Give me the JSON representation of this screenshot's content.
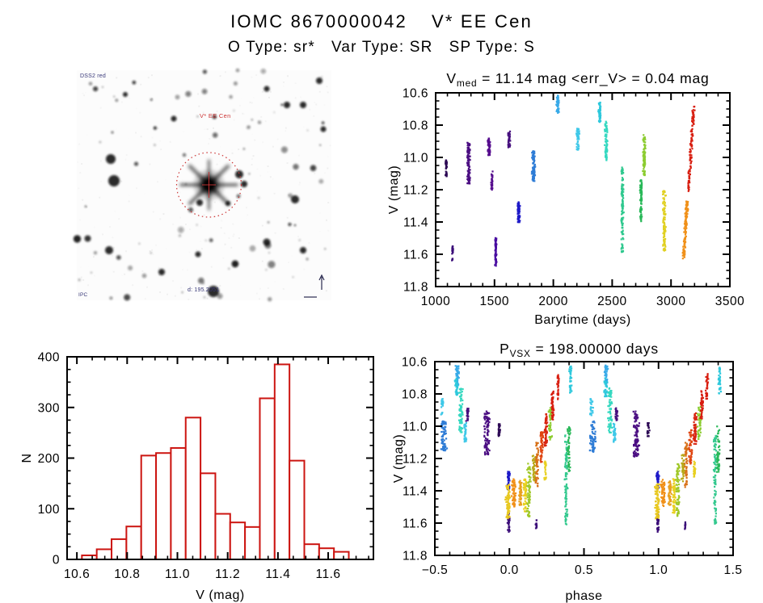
{
  "header": {
    "title_parts": [
      "IOMC 8670000042",
      "V* EE Cen"
    ],
    "subtitle_parts": [
      "O Type: sr*",
      "Var Type: SR",
      "SP Type: S"
    ]
  },
  "finder": {
    "survey_label": "DSS2 red",
    "target_label": "V* EE Cen",
    "coord_label": "d: 195.2051",
    "corner_label": "IPC",
    "annotation_color": "#cc3535",
    "smalltext_color": "#3a3a7a"
  },
  "chart_data": [
    {
      "id": "lightcurve",
      "type": "scatter",
      "title": {
        "pre": "V",
        "sub": "med",
        "post": " = 11.14 mag <err_V> = 0.04 mag"
      },
      "xlabel": "Barytime (days)",
      "ylabel": "V (mag)",
      "xlim": [
        1000,
        3500
      ],
      "ylim": [
        11.8,
        10.6
      ],
      "xticks": [
        {
          "v": 1000,
          "l": "1000"
        },
        {
          "v": 1500,
          "l": "1500"
        },
        {
          "v": 2000,
          "l": "2000"
        },
        {
          "v": 2500,
          "l": "2500"
        },
        {
          "v": 3000,
          "l": "3000"
        },
        {
          "v": 3500,
          "l": "3500"
        }
      ],
      "yticks": [
        {
          "v": 10.6,
          "l": "10.6"
        },
        {
          "v": 10.8,
          "l": "10.8"
        },
        {
          "v": 11.0,
          "l": "11.0"
        },
        {
          "v": 11.2,
          "l": "11.2"
        },
        {
          "v": 11.4,
          "l": "11.4"
        },
        {
          "v": 11.6,
          "l": "11.6"
        },
        {
          "v": 11.8,
          "l": "11.8"
        }
      ],
      "xminor": 100,
      "yminor": 0.05,
      "clusters": [
        {
          "x": 1090,
          "v": [
            11.02,
            11.12
          ],
          "c": "#2D0A55",
          "n": 16,
          "w": 8,
          "t": 0
        },
        {
          "x": 1144,
          "v": [
            11.55,
            11.64
          ],
          "c": "#3A0C78",
          "n": 12,
          "w": 8,
          "t": 0
        },
        {
          "x": 1281,
          "v": [
            10.9,
            11.16
          ],
          "c": "#4B0E82",
          "n": 55,
          "w": 14,
          "t": 0
        },
        {
          "x": 1453,
          "v": [
            10.88,
            10.99
          ],
          "c": "#560D8E",
          "n": 30,
          "w": 12,
          "t": 0
        },
        {
          "x": 1478,
          "v": [
            11.08,
            11.2
          ],
          "c": "#560D8E",
          "n": 16,
          "w": 8,
          "t": 0
        },
        {
          "x": 1512,
          "v": [
            11.5,
            11.67
          ],
          "c": "#480BA0",
          "n": 30,
          "w": 10,
          "t": 0
        },
        {
          "x": 1625,
          "v": [
            10.84,
            10.94
          ],
          "c": "#46107E",
          "n": 22,
          "w": 12,
          "t": 0
        },
        {
          "x": 1707,
          "v": [
            11.28,
            11.41
          ],
          "c": "#1E1AC8",
          "n": 32,
          "w": 12,
          "t": 0
        },
        {
          "x": 1831,
          "v": [
            10.96,
            11.15
          ],
          "c": "#2E7CD6",
          "n": 40,
          "w": 16,
          "t": 0
        },
        {
          "x": 2037,
          "v": [
            10.62,
            10.73
          ],
          "c": "#38AAE8",
          "n": 28,
          "w": 12,
          "t": 0
        },
        {
          "x": 2209,
          "v": [
            10.82,
            10.95
          ],
          "c": "#3EC8E8",
          "n": 26,
          "w": 14,
          "t": 0
        },
        {
          "x": 2394,
          "v": [
            10.66,
            10.78
          ],
          "c": "#2EC8DC",
          "n": 28,
          "w": 12,
          "t": 0
        },
        {
          "x": 2449,
          "v": [
            10.78,
            11.02
          ],
          "c": "#35D8C0",
          "n": 40,
          "w": 14,
          "t": 0
        },
        {
          "x": 2587,
          "v": [
            11.06,
            11.6
          ],
          "c": "#2EC88E",
          "n": 55,
          "w": 12,
          "t": 0
        },
        {
          "x": 2745,
          "v": [
            11.13,
            11.4
          ],
          "c": "#28B858",
          "n": 35,
          "w": 10,
          "t": 0
        },
        {
          "x": 2772,
          "v": [
            10.86,
            11.11
          ],
          "c": "#8CCC30",
          "n": 40,
          "w": 12,
          "t": 0
        },
        {
          "x": 2943,
          "v": [
            11.21,
            11.58
          ],
          "c": "#E0D020",
          "n": 50,
          "w": 14,
          "t": 0
        },
        {
          "x": 3122,
          "v": [
            11.27,
            11.63
          ],
          "c": "#F09018",
          "n": 55,
          "w": 14,
          "t": 40
        },
        {
          "x": 3170,
          "v": [
            10.67,
            11.23
          ],
          "c": "#D81E10",
          "n": 60,
          "w": 12,
          "t": 60
        }
      ]
    },
    {
      "id": "histogram",
      "type": "bar",
      "xlabel": "V (mag)",
      "ylabel": "N",
      "xlim": [
        10.561,
        11.78
      ],
      "ylim": [
        0,
        400
      ],
      "xticks": [
        {
          "v": 10.6,
          "l": "10.6"
        },
        {
          "v": 10.8,
          "l": "10.8"
        },
        {
          "v": 11.0,
          "l": "11.0"
        },
        {
          "v": 11.2,
          "l": "11.2"
        },
        {
          "v": 11.4,
          "l": "11.4"
        },
        {
          "v": 11.6,
          "l": "11.6"
        }
      ],
      "yticks": [
        {
          "v": 0,
          "l": "0"
        },
        {
          "v": 100,
          "l": "100"
        },
        {
          "v": 200,
          "l": "200"
        },
        {
          "v": 300,
          "l": "300"
        },
        {
          "v": 400,
          "l": "400"
        }
      ],
      "xminor": 0.05,
      "yminor": 25,
      "bin_start": 10.62,
      "bin_width": 0.059,
      "values": [
        8,
        20,
        40,
        65,
        205,
        210,
        220,
        280,
        170,
        90,
        73,
        64,
        318,
        385,
        195,
        30,
        22,
        15
      ],
      "bar_color": "#CC1511"
    },
    {
      "id": "phase",
      "type": "scatter",
      "wrap": true,
      "title": {
        "pre": "P",
        "sub": "VSX",
        "post": " = 198.00000 days"
      },
      "xlabel": "phase",
      "ylabel": "V (mag)",
      "xlim": [
        -0.5,
        1.5
      ],
      "ylim": [
        11.8,
        10.6
      ],
      "xticks": [
        {
          "v": -0.5,
          "l": "−0.5"
        },
        {
          "v": 0.0,
          "l": "0.0"
        },
        {
          "v": 0.5,
          "l": "0.5"
        },
        {
          "v": 1.0,
          "l": "1.0"
        },
        {
          "v": 1.5,
          "l": "1.5"
        }
      ],
      "yticks": [
        {
          "v": 10.6,
          "l": "10.6"
        },
        {
          "v": 10.8,
          "l": "10.8"
        },
        {
          "v": 11.0,
          "l": "11.0"
        },
        {
          "v": 11.2,
          "l": "11.2"
        },
        {
          "v": 11.4,
          "l": "11.4"
        },
        {
          "v": 11.6,
          "l": "11.6"
        },
        {
          "v": 11.8,
          "l": "11.8"
        }
      ],
      "xminor": 0.1,
      "yminor": 0.05,
      "clusters": [
        {
          "x": 0.56,
          "v": [
            10.97,
            11.16
          ],
          "c": "#2E7CD6",
          "n": 34,
          "w": 0.022,
          "t": 0
        },
        {
          "x": 0.55,
          "v": [
            10.83,
            10.93
          ],
          "c": "#3EC8E8",
          "n": 12,
          "w": 0.012,
          "t": 0
        },
        {
          "x": 0.65,
          "v": [
            10.62,
            10.74
          ],
          "c": "#38AAE8",
          "n": 22,
          "w": 0.014,
          "t": 0
        },
        {
          "x": 0.645,
          "v": [
            10.7,
            10.82
          ],
          "c": "#2EC8DC",
          "n": 16,
          "w": 0.012,
          "t": 0
        },
        {
          "x": 0.675,
          "v": [
            10.76,
            11.04
          ],
          "c": "#35D8C0",
          "n": 36,
          "w": 0.016,
          "t": 0
        },
        {
          "x": 0.72,
          "v": [
            10.89,
            10.97
          ],
          "c": "#46107E",
          "n": 14,
          "w": 0.012,
          "t": 0
        },
        {
          "x": 0.705,
          "v": [
            10.98,
            11.1
          ],
          "c": "#3EC8E8",
          "n": 16,
          "w": 0.01,
          "t": 0
        },
        {
          "x": 0.85,
          "v": [
            10.91,
            11.19
          ],
          "c": "#4B0E82",
          "n": 48,
          "w": 0.022,
          "t": 0
        },
        {
          "x": 0.93,
          "v": [
            10.98,
            11.07
          ],
          "c": "#2D0A55",
          "n": 12,
          "w": 0.01,
          "t": 0
        },
        {
          "x": 0.995,
          "v": [
            11.54,
            11.66
          ],
          "c": "#3A0C78",
          "n": 16,
          "w": 0.008,
          "t": 0
        },
        {
          "x": 0.995,
          "v": [
            11.28,
            11.39
          ],
          "c": "#1E1AC8",
          "n": 20,
          "w": 0.01,
          "t": 0
        },
        {
          "x": 0.99,
          "v": [
            11.36,
            11.57
          ],
          "c": "#E8C820",
          "n": 40,
          "w": 0.018,
          "t": 0
        },
        {
          "x": 0.03,
          "v": [
            11.33,
            11.5
          ],
          "c": "#F09018",
          "n": 30,
          "w": 0.016,
          "t": 0
        },
        {
          "x": 0.075,
          "v": [
            11.34,
            11.49
          ],
          "c": "#E8A020",
          "n": 24,
          "w": 0.012,
          "t": 0
        },
        {
          "x": 0.105,
          "v": [
            11.32,
            11.54
          ],
          "c": "#E8D020",
          "n": 26,
          "w": 0.012,
          "t": 0
        },
        {
          "x": 0.13,
          "v": [
            11.23,
            11.56
          ],
          "c": "#A0C828",
          "n": 34,
          "w": 0.014,
          "t": 4
        },
        {
          "x": 0.165,
          "v": [
            11.18,
            11.34
          ],
          "c": "#B8A818",
          "n": 20,
          "w": 0.012,
          "t": 4
        },
        {
          "x": 0.185,
          "v": [
            11.1,
            11.38
          ],
          "c": "#D87018",
          "n": 26,
          "w": 0.012,
          "t": 6
        },
        {
          "x": 0.215,
          "v": [
            11.02,
            11.24
          ],
          "c": "#E04410",
          "n": 26,
          "w": 0.012,
          "t": 6
        },
        {
          "x": 0.245,
          "v": [
            10.92,
            11.12
          ],
          "c": "#D82410",
          "n": 28,
          "w": 0.012,
          "t": 6
        },
        {
          "x": 0.275,
          "v": [
            10.88,
            11.08
          ],
          "c": "#8CCC30",
          "n": 22,
          "w": 0.014,
          "t": 0
        },
        {
          "x": 0.29,
          "v": [
            10.78,
            10.96
          ],
          "c": "#D81E10",
          "n": 24,
          "w": 0.01,
          "t": 6
        },
        {
          "x": 0.325,
          "v": [
            10.68,
            10.83
          ],
          "c": "#D81E10",
          "n": 18,
          "w": 0.009,
          "t": 5
        },
        {
          "x": 0.24,
          "v": [
            11.22,
            11.33
          ],
          "c": "#E8D020",
          "n": 12,
          "w": 0.008,
          "t": 0
        },
        {
          "x": 0.18,
          "v": [
            11.58,
            11.64
          ],
          "c": "#3A0C78",
          "n": 5,
          "w": 0.006,
          "t": 0
        },
        {
          "x": 0.38,
          "v": [
            11.06,
            11.61
          ],
          "c": "#34C98F",
          "n": 45,
          "w": 0.011,
          "t": 0
        },
        {
          "x": 0.4,
          "v": [
            11.0,
            11.28
          ],
          "c": "#28B858",
          "n": 24,
          "w": 0.012,
          "t": 0
        },
        {
          "x": 0.41,
          "v": [
            10.63,
            10.8
          ],
          "c": "#2EC8DC",
          "n": 18,
          "w": 0.01,
          "t": 0
        }
      ]
    }
  ]
}
